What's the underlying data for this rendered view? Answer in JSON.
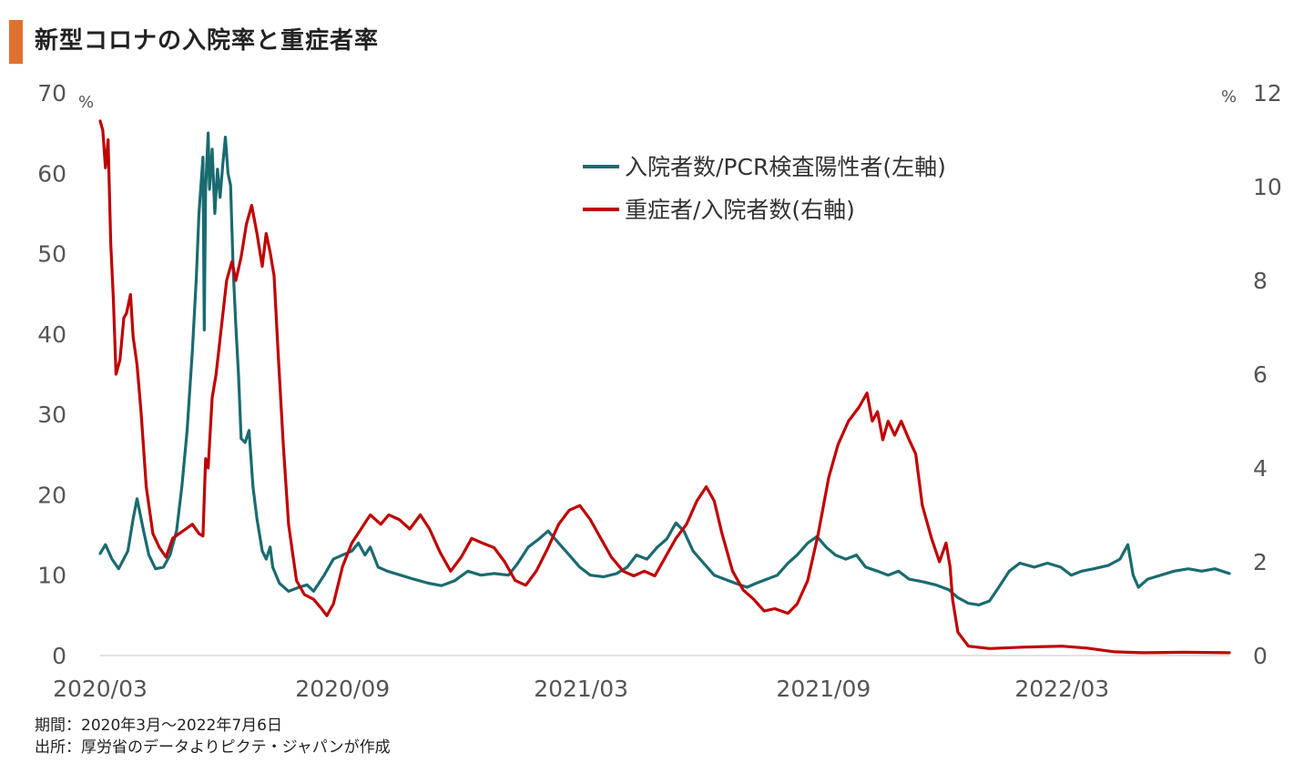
{
  "header": {
    "title": "新型コロナの入院率と重症者率"
  },
  "footnotes": {
    "period": "期間：2020年3月～2022年7月6日",
    "source": "出所：厚労省のデータよりピクテ・ジャパンが作成"
  },
  "colors": {
    "accent": "#e07030",
    "hospitalization": "#1a6b70",
    "severe": "#c00000"
  },
  "chart_data": {
    "type": "line",
    "x_ticks": [
      "2020/03",
      "2020/09",
      "2021/03",
      "2021/09",
      "2022/03"
    ],
    "y_left": {
      "unit": "%",
      "lim": [
        0,
        70
      ],
      "ticks": [
        0,
        10,
        20,
        30,
        40,
        50,
        60,
        70
      ]
    },
    "y_right": {
      "unit": "%",
      "lim": [
        0,
        12
      ],
      "ticks": [
        0,
        2,
        4,
        6,
        8,
        10,
        12
      ]
    },
    "legend_position": "top-right",
    "series": [
      {
        "name": "入院者数/PCR検査陽性者(左軸)",
        "axis": "left",
        "points": [
          [
            "2020-03-01",
            12.7
          ],
          [
            "2020-03-05",
            13.8
          ],
          [
            "2020-03-10",
            12.0
          ],
          [
            "2020-03-15",
            10.8
          ],
          [
            "2020-03-22",
            13.0
          ],
          [
            "2020-03-26",
            17.0
          ],
          [
            "2020-03-29",
            19.5
          ],
          [
            "2020-04-03",
            15.5
          ],
          [
            "2020-04-07",
            12.5
          ],
          [
            "2020-04-12",
            10.8
          ],
          [
            "2020-04-18",
            11.0
          ],
          [
            "2020-04-23",
            12.5
          ],
          [
            "2020-04-28",
            15.5
          ],
          [
            "2020-05-02",
            21.0
          ],
          [
            "2020-05-06",
            28.0
          ],
          [
            "2020-05-10",
            38.0
          ],
          [
            "2020-05-13",
            47.0
          ],
          [
            "2020-05-15",
            55.0
          ],
          [
            "2020-05-18",
            62.0
          ],
          [
            "2020-05-19",
            40.5
          ],
          [
            "2020-05-20",
            58.0
          ],
          [
            "2020-05-22",
            65.0
          ],
          [
            "2020-05-23",
            58.0
          ],
          [
            "2020-05-25",
            63.0
          ],
          [
            "2020-05-27",
            55.0
          ],
          [
            "2020-05-29",
            60.5
          ],
          [
            "2020-05-31",
            57.0
          ],
          [
            "2020-06-02",
            61.0
          ],
          [
            "2020-06-04",
            64.5
          ],
          [
            "2020-06-06",
            60.0
          ],
          [
            "2020-06-08",
            58.5
          ],
          [
            "2020-06-10",
            48.0
          ],
          [
            "2020-06-12",
            41.0
          ],
          [
            "2020-06-14",
            35.0
          ],
          [
            "2020-06-16",
            27.0
          ],
          [
            "2020-06-19",
            26.5
          ],
          [
            "2020-06-22",
            28.0
          ],
          [
            "2020-06-25",
            21.0
          ],
          [
            "2020-06-28",
            17.0
          ],
          [
            "2020-07-02",
            13.0
          ],
          [
            "2020-07-05",
            12.0
          ],
          [
            "2020-07-08",
            13.5
          ],
          [
            "2020-07-10",
            11.0
          ],
          [
            "2020-07-15",
            9.0
          ],
          [
            "2020-07-22",
            8.0
          ],
          [
            "2020-07-30",
            8.5
          ],
          [
            "2020-08-05",
            8.8
          ],
          [
            "2020-08-10",
            8.0
          ],
          [
            "2020-08-18",
            10.0
          ],
          [
            "2020-08-25",
            12.0
          ],
          [
            "2020-09-01",
            12.5
          ],
          [
            "2020-09-08",
            13.0
          ],
          [
            "2020-09-13",
            14.0
          ],
          [
            "2020-09-18",
            12.5
          ],
          [
            "2020-09-22",
            13.5
          ],
          [
            "2020-09-28",
            11.0
          ],
          [
            "2020-10-05",
            10.5
          ],
          [
            "2020-10-15",
            10.0
          ],
          [
            "2020-10-25",
            9.5
          ],
          [
            "2020-11-05",
            9.0
          ],
          [
            "2020-11-15",
            8.7
          ],
          [
            "2020-11-25",
            9.3
          ],
          [
            "2020-12-05",
            10.5
          ],
          [
            "2020-12-15",
            10.0
          ],
          [
            "2020-12-25",
            10.2
          ],
          [
            "2021-01-05",
            10.0
          ],
          [
            "2021-01-12",
            11.5
          ],
          [
            "2021-01-20",
            13.5
          ],
          [
            "2021-01-28",
            14.5
          ],
          [
            "2021-02-04",
            15.5
          ],
          [
            "2021-02-12",
            14.0
          ],
          [
            "2021-02-20",
            12.5
          ],
          [
            "2021-02-28",
            11.0
          ],
          [
            "2021-03-08",
            10.0
          ],
          [
            "2021-03-18",
            9.8
          ],
          [
            "2021-03-28",
            10.2
          ],
          [
            "2021-04-05",
            11.0
          ],
          [
            "2021-04-12",
            12.5
          ],
          [
            "2021-04-20",
            12.0
          ],
          [
            "2021-04-28",
            13.5
          ],
          [
            "2021-05-05",
            14.5
          ],
          [
            "2021-05-12",
            16.5
          ],
          [
            "2021-05-18",
            15.5
          ],
          [
            "2021-05-25",
            13.0
          ],
          [
            "2021-06-02",
            11.5
          ],
          [
            "2021-06-10",
            10.0
          ],
          [
            "2021-06-18",
            9.5
          ],
          [
            "2021-06-26",
            9.0
          ],
          [
            "2021-07-05",
            8.5
          ],
          [
            "2021-07-12",
            9.0
          ],
          [
            "2021-07-20",
            9.5
          ],
          [
            "2021-07-28",
            10.0
          ],
          [
            "2021-08-05",
            11.5
          ],
          [
            "2021-08-12",
            12.5
          ],
          [
            "2021-08-20",
            14.0
          ],
          [
            "2021-08-27",
            14.8
          ],
          [
            "2021-09-03",
            13.5
          ],
          [
            "2021-09-10",
            12.5
          ],
          [
            "2021-09-18",
            12.0
          ],
          [
            "2021-09-26",
            12.5
          ],
          [
            "2021-10-03",
            11.0
          ],
          [
            "2021-10-12",
            10.5
          ],
          [
            "2021-10-20",
            10.0
          ],
          [
            "2021-10-28",
            10.5
          ],
          [
            "2021-11-05",
            9.5
          ],
          [
            "2021-11-15",
            9.2
          ],
          [
            "2021-11-25",
            8.8
          ],
          [
            "2021-12-05",
            8.2
          ],
          [
            "2021-12-12",
            7.2
          ],
          [
            "2021-12-20",
            6.5
          ],
          [
            "2021-12-28",
            6.3
          ],
          [
            "2022-01-05",
            6.8
          ],
          [
            "2022-01-12",
            8.5
          ],
          [
            "2022-01-20",
            10.5
          ],
          [
            "2022-01-28",
            11.5
          ],
          [
            "2022-02-08",
            11.0
          ],
          [
            "2022-02-18",
            11.5
          ],
          [
            "2022-02-28",
            11.0
          ],
          [
            "2022-03-08",
            10.0
          ],
          [
            "2022-03-16",
            10.5
          ],
          [
            "2022-03-25",
            10.8
          ],
          [
            "2022-04-05",
            11.2
          ],
          [
            "2022-04-14",
            12.0
          ],
          [
            "2022-04-20",
            13.8
          ],
          [
            "2022-04-24",
            10.0
          ],
          [
            "2022-04-28",
            8.5
          ],
          [
            "2022-05-05",
            9.5
          ],
          [
            "2022-05-15",
            10.0
          ],
          [
            "2022-05-25",
            10.5
          ],
          [
            "2022-06-05",
            10.8
          ],
          [
            "2022-06-15",
            10.5
          ],
          [
            "2022-06-25",
            10.8
          ],
          [
            "2022-07-06",
            10.2
          ]
        ]
      },
      {
        "name": "重症者/入院者数(右軸)",
        "axis": "right",
        "points": [
          [
            "2020-03-01",
            11.4
          ],
          [
            "2020-03-03",
            11.2
          ],
          [
            "2020-03-05",
            10.4
          ],
          [
            "2020-03-07",
            11.0
          ],
          [
            "2020-03-09",
            8.8
          ],
          [
            "2020-03-11",
            7.6
          ],
          [
            "2020-03-13",
            6.0
          ],
          [
            "2020-03-16",
            6.3
          ],
          [
            "2020-03-19",
            7.2
          ],
          [
            "2020-03-21",
            7.3
          ],
          [
            "2020-03-24",
            7.7
          ],
          [
            "2020-03-26",
            6.8
          ],
          [
            "2020-03-29",
            6.2
          ],
          [
            "2020-04-01",
            5.2
          ],
          [
            "2020-04-05",
            3.6
          ],
          [
            "2020-04-10",
            2.6
          ],
          [
            "2020-04-15",
            2.3
          ],
          [
            "2020-04-20",
            2.1
          ],
          [
            "2020-04-25",
            2.5
          ],
          [
            "2020-04-30",
            2.6
          ],
          [
            "2020-05-05",
            2.7
          ],
          [
            "2020-05-10",
            2.8
          ],
          [
            "2020-05-15",
            2.6
          ],
          [
            "2020-05-18",
            2.55
          ],
          [
            "2020-05-20",
            4.2
          ],
          [
            "2020-05-22",
            4.0
          ],
          [
            "2020-05-25",
            5.5
          ],
          [
            "2020-05-28",
            6.0
          ],
          [
            "2020-06-01",
            7.0
          ],
          [
            "2020-06-05",
            8.0
          ],
          [
            "2020-06-09",
            8.4
          ],
          [
            "2020-06-12",
            8.0
          ],
          [
            "2020-06-16",
            8.5
          ],
          [
            "2020-06-20",
            9.2
          ],
          [
            "2020-06-24",
            9.6
          ],
          [
            "2020-06-28",
            9.0
          ],
          [
            "2020-07-02",
            8.3
          ],
          [
            "2020-07-05",
            9.0
          ],
          [
            "2020-07-08",
            8.6
          ],
          [
            "2020-07-11",
            8.1
          ],
          [
            "2020-07-14",
            6.5
          ],
          [
            "2020-07-18",
            4.5
          ],
          [
            "2020-07-22",
            2.8
          ],
          [
            "2020-07-28",
            1.6
          ],
          [
            "2020-08-03",
            1.3
          ],
          [
            "2020-08-10",
            1.2
          ],
          [
            "2020-08-16",
            1.0
          ],
          [
            "2020-08-20",
            0.85
          ],
          [
            "2020-08-25",
            1.1
          ],
          [
            "2020-09-01",
            1.9
          ],
          [
            "2020-09-08",
            2.4
          ],
          [
            "2020-09-15",
            2.7
          ],
          [
            "2020-09-22",
            3.0
          ],
          [
            "2020-09-30",
            2.8
          ],
          [
            "2020-10-06",
            3.0
          ],
          [
            "2020-10-14",
            2.9
          ],
          [
            "2020-10-22",
            2.7
          ],
          [
            "2020-10-30",
            3.0
          ],
          [
            "2020-11-06",
            2.7
          ],
          [
            "2020-11-14",
            2.2
          ],
          [
            "2020-11-22",
            1.8
          ],
          [
            "2020-11-30",
            2.1
          ],
          [
            "2020-12-08",
            2.5
          ],
          [
            "2020-12-16",
            2.4
          ],
          [
            "2020-12-25",
            2.3
          ],
          [
            "2021-01-02",
            2.0
          ],
          [
            "2021-01-10",
            1.6
          ],
          [
            "2021-01-18",
            1.5
          ],
          [
            "2021-01-26",
            1.8
          ],
          [
            "2021-02-04",
            2.3
          ],
          [
            "2021-02-12",
            2.8
          ],
          [
            "2021-02-20",
            3.1
          ],
          [
            "2021-02-28",
            3.2
          ],
          [
            "2021-03-08",
            2.9
          ],
          [
            "2021-03-16",
            2.5
          ],
          [
            "2021-03-24",
            2.1
          ],
          [
            "2021-04-02",
            1.8
          ],
          [
            "2021-04-10",
            1.7
          ],
          [
            "2021-04-18",
            1.8
          ],
          [
            "2021-04-26",
            1.7
          ],
          [
            "2021-05-04",
            2.1
          ],
          [
            "2021-05-12",
            2.5
          ],
          [
            "2021-05-20",
            2.8
          ],
          [
            "2021-05-28",
            3.3
          ],
          [
            "2021-06-04",
            3.6
          ],
          [
            "2021-06-10",
            3.3
          ],
          [
            "2021-06-16",
            2.6
          ],
          [
            "2021-06-24",
            1.8
          ],
          [
            "2021-07-02",
            1.4
          ],
          [
            "2021-07-10",
            1.2
          ],
          [
            "2021-07-18",
            0.95
          ],
          [
            "2021-07-26",
            1.0
          ],
          [
            "2021-08-05",
            0.9
          ],
          [
            "2021-08-12",
            1.1
          ],
          [
            "2021-08-20",
            1.6
          ],
          [
            "2021-08-28",
            2.6
          ],
          [
            "2021-09-05",
            3.8
          ],
          [
            "2021-09-12",
            4.5
          ],
          [
            "2021-09-20",
            5.0
          ],
          [
            "2021-09-28",
            5.3
          ],
          [
            "2021-10-04",
            5.6
          ],
          [
            "2021-10-08",
            5.0
          ],
          [
            "2021-10-12",
            5.2
          ],
          [
            "2021-10-16",
            4.6
          ],
          [
            "2021-10-20",
            5.0
          ],
          [
            "2021-10-25",
            4.7
          ],
          [
            "2021-10-30",
            5.0
          ],
          [
            "2021-11-05",
            4.6
          ],
          [
            "2021-11-10",
            4.3
          ],
          [
            "2021-11-15",
            3.2
          ],
          [
            "2021-11-22",
            2.5
          ],
          [
            "2021-11-28",
            2.0
          ],
          [
            "2021-12-03",
            2.4
          ],
          [
            "2021-12-06",
            1.9
          ],
          [
            "2021-12-08",
            1.2
          ],
          [
            "2021-12-12",
            0.5
          ],
          [
            "2021-12-20",
            0.2
          ],
          [
            "2022-01-05",
            0.15
          ],
          [
            "2022-02-01",
            0.18
          ],
          [
            "2022-03-01",
            0.2
          ],
          [
            "2022-03-20",
            0.16
          ],
          [
            "2022-04-10",
            0.08
          ],
          [
            "2022-05-01",
            0.06
          ],
          [
            "2022-06-01",
            0.07
          ],
          [
            "2022-07-06",
            0.06
          ]
        ]
      }
    ]
  }
}
